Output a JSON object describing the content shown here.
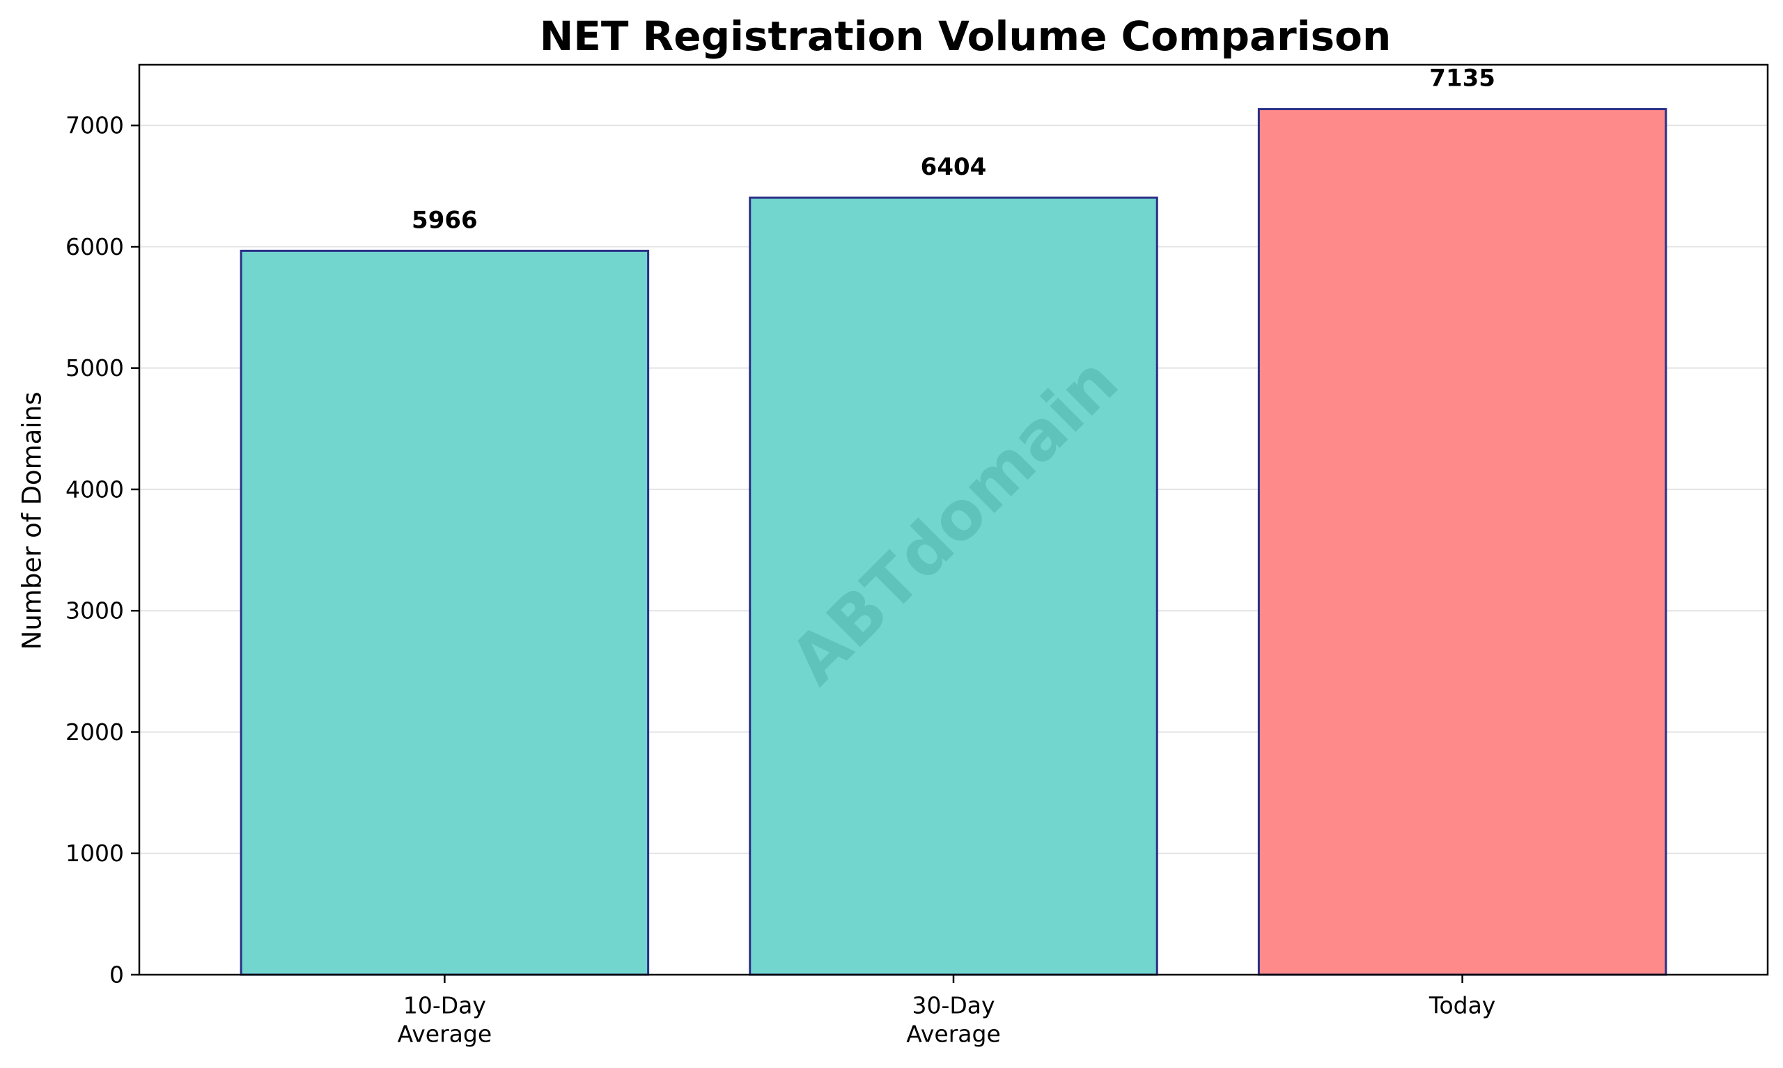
{
  "chart_data": {
    "type": "bar",
    "title": "NET Registration Volume Comparison",
    "xlabel": "",
    "ylabel": "Number of Domains",
    "categories": [
      [
        "10-Day",
        "Average"
      ],
      [
        "30-Day",
        "Average"
      ],
      [
        "Today"
      ]
    ],
    "values": [
      5966,
      6404,
      7135
    ],
    "data_labels": [
      "5966",
      "6404",
      "7135"
    ],
    "bar_colors": [
      "#72d6cf",
      "#72d6cf",
      "#ff8a8a"
    ],
    "bar_edge_color": "#2a2f86",
    "ylim": [
      0,
      7500
    ],
    "yticks": [
      0,
      1000,
      2000,
      3000,
      4000,
      5000,
      6000,
      7000
    ],
    "grid": "horizontal",
    "watermark": "ABTdomain",
    "watermark_color": "#4aaaa2"
  }
}
